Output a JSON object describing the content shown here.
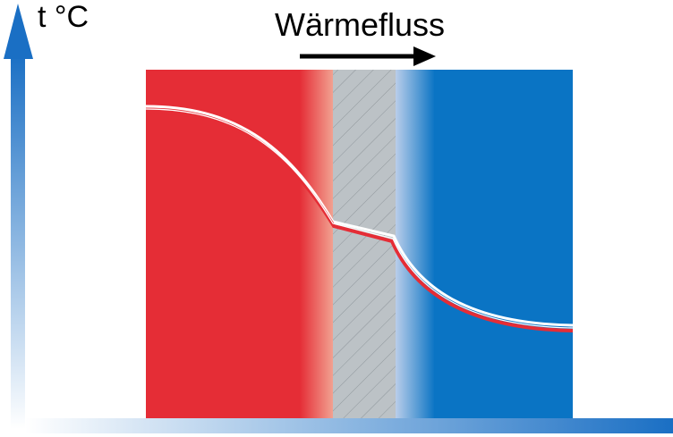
{
  "axis": {
    "y_label": "t °C"
  },
  "heat_flow": {
    "label": "Wärmefluss"
  }
}
